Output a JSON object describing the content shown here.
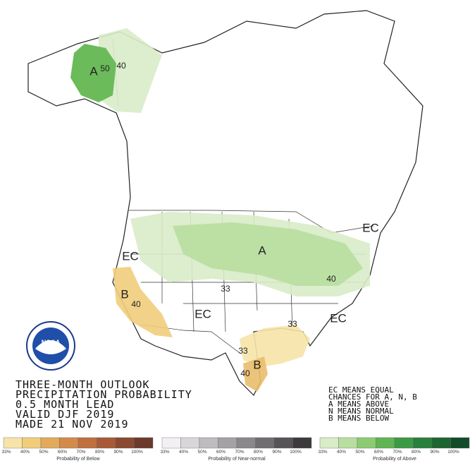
{
  "title_block": {
    "lines": [
      "THREE-MONTH OUTLOOK",
      "PRECIPITATION PROBABILITY",
      "0.5 MONTH LEAD",
      "VALID DJF 2019",
      "MADE 21 NOV 2019"
    ]
  },
  "key_block": {
    "lines": [
      "EC MEANS EQUAL",
      "CHANCES FOR A, N, B",
      "A MEANS ABOVE",
      "N MEANS NORMAL",
      "B MEANS BELOW"
    ]
  },
  "logo": {
    "text": "NOAA"
  },
  "map_labels": {
    "alaska_a": "A",
    "alaska_50": "50",
    "alaska_40": "40",
    "midwest_a": "A",
    "midwest_40": "40",
    "central_33": "33",
    "west_ec": "EC",
    "calif_b": "B",
    "calif_40": "40",
    "southwest_ec": "EC",
    "southeast_ec": "EC",
    "southeast_33": "33",
    "texas_33": "33",
    "texas_b": "B",
    "texas_40": "40",
    "northeast_ec": "EC"
  },
  "legends": [
    {
      "caption": "Probability of Below",
      "labels": [
        "33%",
        "40%",
        "50%",
        "60%",
        "70%",
        "80%",
        "90%",
        "100%"
      ],
      "colors": [
        "#f7e3a8",
        "#f1cd7b",
        "#e3aa5c",
        "#d38b4b",
        "#c06f3f",
        "#a85a36",
        "#8a4930",
        "#6b3a2a"
      ]
    },
    {
      "caption": "Probability of Near-normal",
      "labels": [
        "33%",
        "40%",
        "50%",
        "60%",
        "70%",
        "80%",
        "90%",
        "100%"
      ],
      "colors": [
        "#f3f0f3",
        "#d9d6d9",
        "#bfbcbf",
        "#a5a2a5",
        "#8b888b",
        "#716e71",
        "#575457",
        "#3d3a3d"
      ]
    },
    {
      "caption": "Probability of Above",
      "labels": [
        "33%",
        "40%",
        "50%",
        "60%",
        "70%",
        "80%",
        "90%",
        "100%"
      ],
      "colors": [
        "#d8ecc8",
        "#b8dea0",
        "#8ccb73",
        "#5fb553",
        "#3c9a45",
        "#2a7f3c",
        "#1d6532",
        "#124c28"
      ]
    }
  ]
}
